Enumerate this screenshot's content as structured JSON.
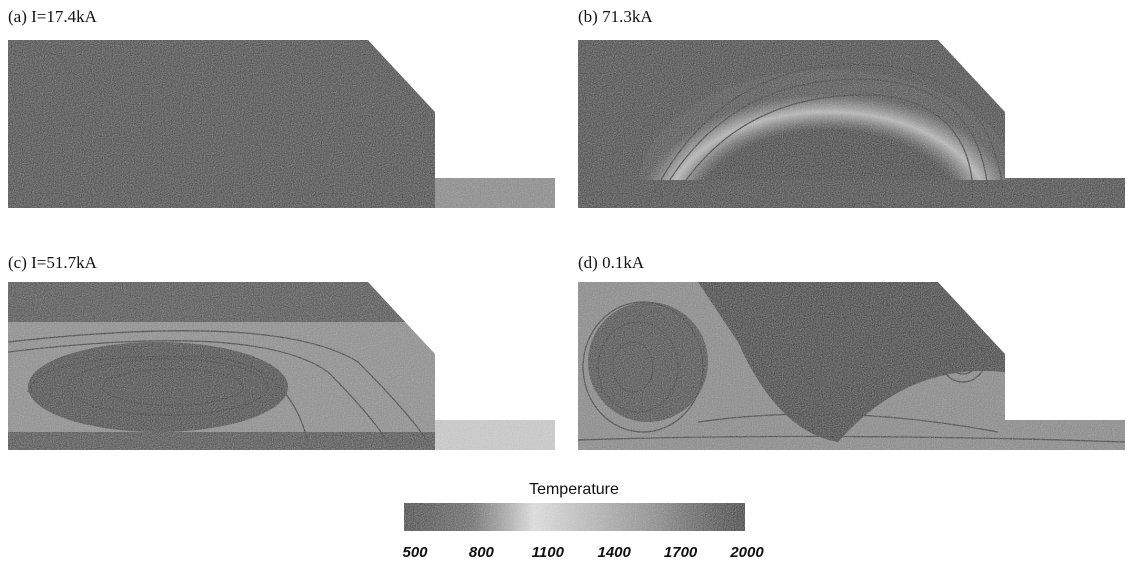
{
  "panels": [
    {
      "label": "(a) I=17.4kA"
    },
    {
      "label": "(b) 71.3kA"
    },
    {
      "label": "(c) I=51.7kA"
    },
    {
      "label": "(d) 0.1kA"
    }
  ],
  "colorbar": {
    "title": "Temperature",
    "ticks": [
      500,
      800,
      1100,
      1400,
      1700,
      2000
    ]
  }
}
